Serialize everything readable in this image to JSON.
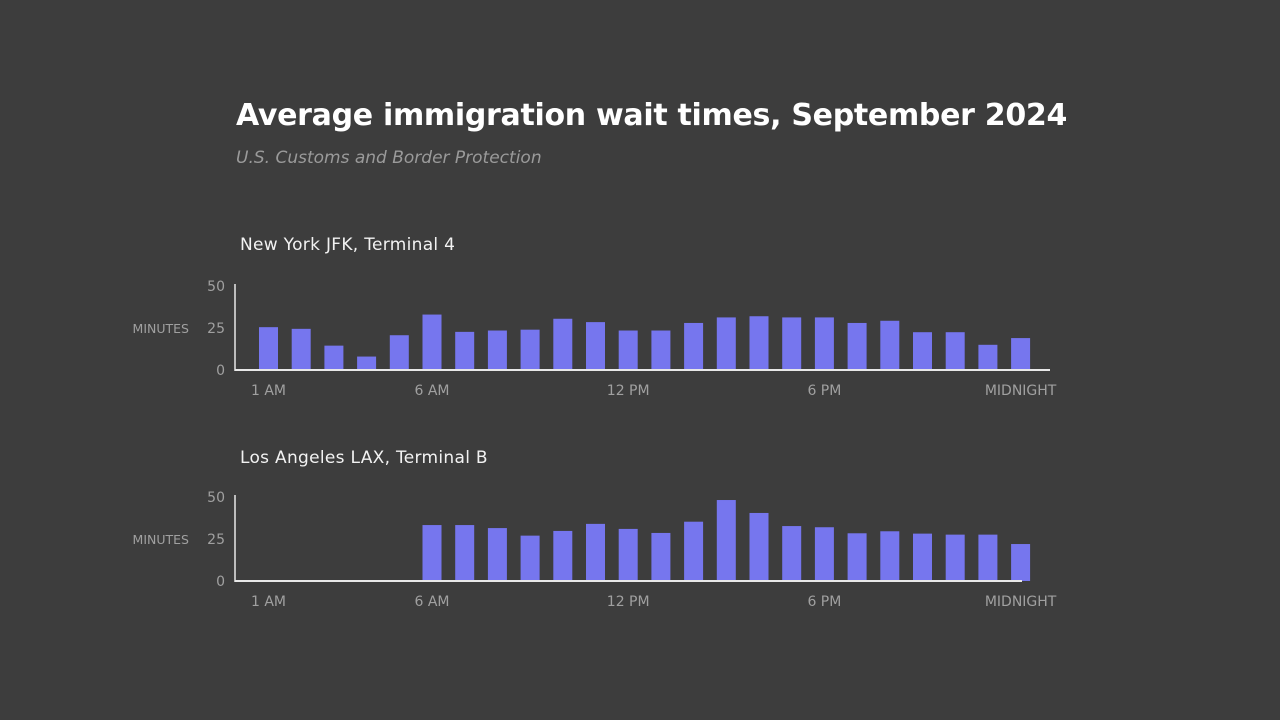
{
  "colors": {
    "background": "#3d3d3d",
    "bar": "#7676ee",
    "axis": "#e8e8e8",
    "text": "#a0a0a0"
  },
  "chart_data": {
    "type": "bar",
    "title": "Average immigration wait times, September 2024",
    "subtitle": "U.S. Customs and Border Protection",
    "panels": [
      {
        "title": "New York JFK, Terminal 4",
        "ylabel": "MINUTES",
        "ylim": [
          0,
          50
        ],
        "yticks": [
          "0",
          "25",
          "50"
        ],
        "xtick_labels": [
          {
            "index": 0,
            "label": "1 AM"
          },
          {
            "index": 5,
            "label": "6 AM"
          },
          {
            "index": 11,
            "label": "12 PM"
          },
          {
            "index": 17,
            "label": "6 PM"
          },
          {
            "index": 23,
            "label": "MIDNIGHT"
          }
        ],
        "values": [
          25.5,
          24.5,
          14.5,
          8,
          20.7,
          33,
          22.7,
          23.5,
          24,
          30.5,
          28.5,
          23.5,
          23.5,
          28,
          31.3,
          32,
          31.3,
          31.3,
          28,
          29.3,
          22.5,
          22.5,
          15,
          19
        ]
      },
      {
        "title": "Los Angeles LAX, Terminal B",
        "ylabel": "MINUTES",
        "ylim": [
          0,
          50
        ],
        "yticks": [
          "0",
          "25",
          "50"
        ],
        "xtick_labels": [
          {
            "index": 0,
            "label": "1 AM"
          },
          {
            "index": 5,
            "label": "6 AM"
          },
          {
            "index": 11,
            "label": "12 PM"
          },
          {
            "index": 17,
            "label": "6 PM"
          },
          {
            "index": 23,
            "label": "MIDNIGHT"
          }
        ],
        "values": [
          null,
          null,
          null,
          null,
          null,
          33.3,
          33.3,
          31.5,
          27,
          29.8,
          34,
          31,
          28.6,
          35.3,
          48.2,
          40.5,
          32.7,
          32,
          28.4,
          29.6,
          28.2,
          27.6,
          27.6,
          22
        ]
      }
    ]
  }
}
